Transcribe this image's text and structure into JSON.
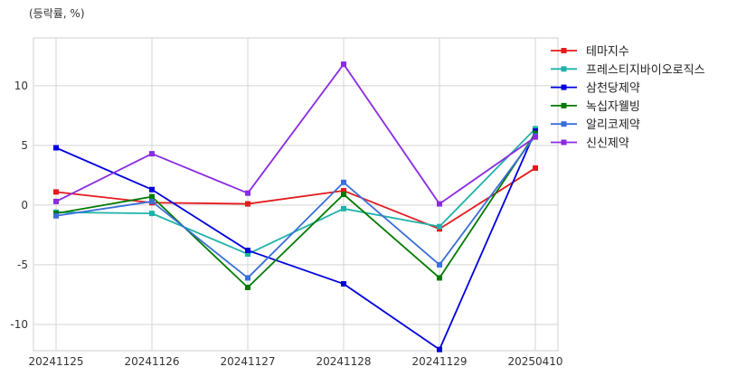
{
  "chart_data": {
    "type": "line",
    "unit_label": "(등락률, %)",
    "categories": [
      "20241125",
      "20241126",
      "20241127",
      "20241128",
      "20241129",
      "20250410"
    ],
    "ylim": [
      -12.2,
      14
    ],
    "yticks": [
      -10,
      -5,
      0,
      5,
      10
    ],
    "ytick_labels": [
      "-10",
      "-5",
      "0",
      "5",
      "10"
    ],
    "grid": true,
    "legend_position": "right",
    "series": [
      {
        "name": "테마지수",
        "color": "#e41a1c",
        "values": [
          1.1,
          0.2,
          0.1,
          1.2,
          -2.0,
          3.1
        ]
      },
      {
        "name": "프레스티지바이오로직스",
        "color": "#20b2aa",
        "values": [
          -0.6,
          -0.7,
          -4.1,
          -0.3,
          -1.8,
          6.4
        ]
      },
      {
        "name": "삼천당제약",
        "color": "#0000dd",
        "values": [
          4.8,
          1.3,
          -3.8,
          -6.6,
          -12.1,
          6.2
        ]
      },
      {
        "name": "녹십자웰빙",
        "color": "#007a00",
        "values": [
          -0.7,
          0.7,
          -6.9,
          0.9,
          -6.1,
          6.0
        ]
      },
      {
        "name": "알리코제약",
        "color": "#3a6fd8",
        "values": [
          -0.9,
          0.3,
          -6.1,
          1.9,
          -5.0,
          5.8
        ]
      },
      {
        "name": "신신제약",
        "color": "#8a2be2",
        "values": [
          0.3,
          4.3,
          1.0,
          11.8,
          0.1,
          5.7
        ]
      }
    ]
  }
}
